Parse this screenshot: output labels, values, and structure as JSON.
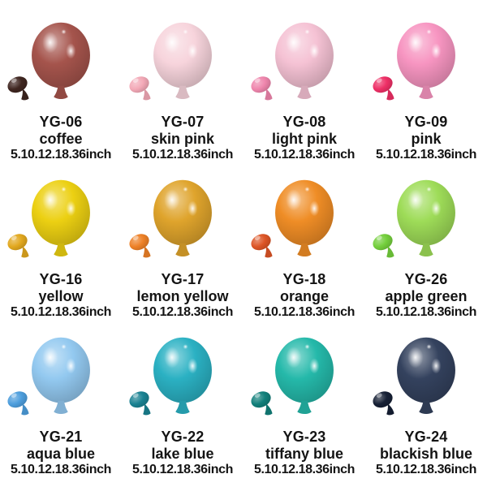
{
  "page": {
    "background": "#ffffff",
    "text_color": "#141414",
    "size_line": "5.10.12.18.36inch"
  },
  "items": [
    {
      "code": "YG-06",
      "name": "coffee",
      "sizes": "5.10.12.18.36inch",
      "balloon_color": "#a5544c",
      "mini_balloon_color": "#3f2620"
    },
    {
      "code": "YG-07",
      "name": "skin pink",
      "sizes": "5.10.12.18.36inch",
      "balloon_color": "#f7d4dc",
      "mini_balloon_color": "#f3a9b7"
    },
    {
      "code": "YG-08",
      "name": "light pink",
      "sizes": "5.10.12.18.36inch",
      "balloon_color": "#f5c2d4",
      "mini_balloon_color": "#ef86ad"
    },
    {
      "code": "YG-09",
      "name": "pink",
      "sizes": "5.10.12.18.36inch",
      "balloon_color": "#f795c1",
      "mini_balloon_color": "#ee2f66"
    },
    {
      "code": "YG-16",
      "name": "yellow",
      "sizes": "5.10.12.18.36inch",
      "balloon_color": "#ecd012",
      "mini_balloon_color": "#e2a81e"
    },
    {
      "code": "YG-17",
      "name": "lemon yellow",
      "sizes": "5.10.12.18.36inch",
      "balloon_color": "#dfa42c",
      "mini_balloon_color": "#ee8127"
    },
    {
      "code": "YG-18",
      "name": "orange",
      "sizes": "5.10.12.18.36inch",
      "balloon_color": "#ef8d26",
      "mini_balloon_color": "#dd5526"
    },
    {
      "code": "YG-26",
      "name": "apple green",
      "sizes": "5.10.12.18.36inch",
      "balloon_color": "#9edc58",
      "mini_balloon_color": "#74cf3c"
    },
    {
      "code": "YG-21",
      "name": "aqua blue",
      "sizes": "5.10.12.18.36inch",
      "balloon_color": "#93c9f0",
      "mini_balloon_color": "#4d9edd"
    },
    {
      "code": "YG-22",
      "name": "lake blue",
      "sizes": "5.10.12.18.36inch",
      "balloon_color": "#2bb1c3",
      "mini_balloon_color": "#1a8292"
    },
    {
      "code": "YG-23",
      "name": "tiffany blue",
      "sizes": "5.10.12.18.36inch",
      "balloon_color": "#25b9aa",
      "mini_balloon_color": "#12807b"
    },
    {
      "code": "YG-24",
      "name": "blackish blue",
      "sizes": "5.10.12.18.36inch",
      "balloon_color": "#34425e",
      "mini_balloon_color": "#162035"
    }
  ]
}
